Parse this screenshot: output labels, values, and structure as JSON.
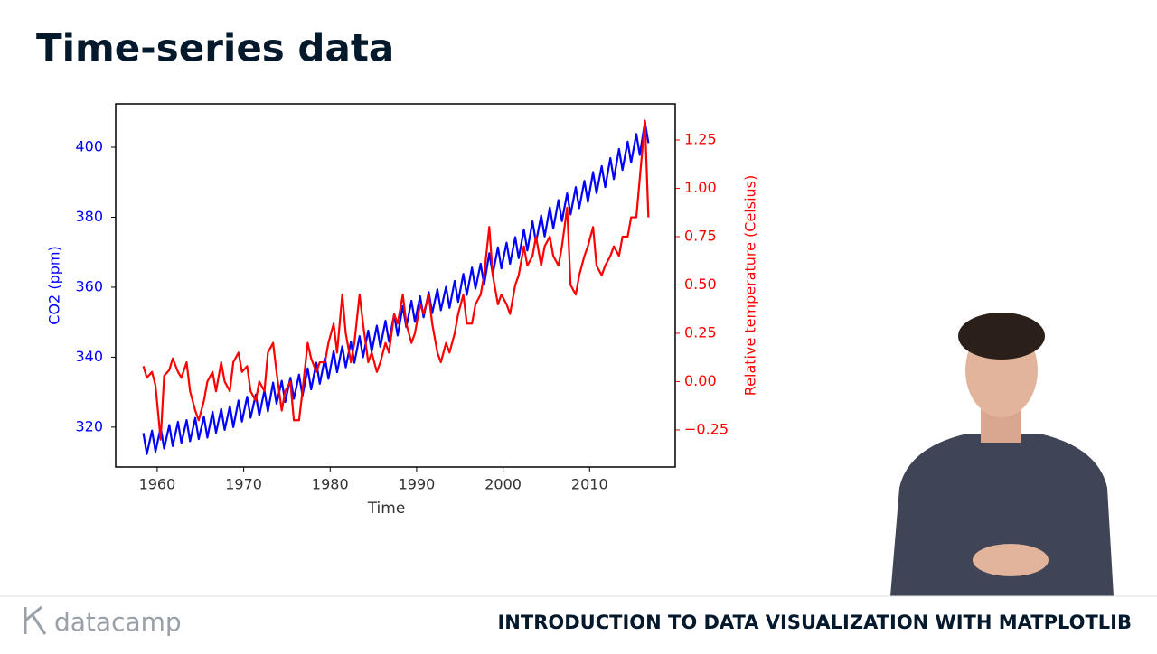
{
  "header": {
    "title": "Time-series data"
  },
  "chart_data": {
    "type": "line",
    "xlabel": "Time",
    "ylabel": "CO2 (ppm)",
    "y2label": "Relative temperature (Celsius)",
    "x": [
      1958.4,
      1958.8,
      1959.4,
      1959.8,
      1960.4,
      1960.8,
      1961.4,
      1961.8,
      1962.4,
      1962.8,
      1963.4,
      1963.8,
      1964.4,
      1964.8,
      1965.4,
      1965.8,
      1966.4,
      1966.8,
      1967.4,
      1967.8,
      1968.4,
      1968.8,
      1969.4,
      1969.8,
      1970.4,
      1970.8,
      1971.4,
      1971.8,
      1972.4,
      1972.8,
      1973.4,
      1973.8,
      1974.4,
      1974.8,
      1975.4,
      1975.8,
      1976.4,
      1976.8,
      1977.4,
      1977.8,
      1978.4,
      1978.8,
      1979.4,
      1979.8,
      1980.4,
      1980.8,
      1981.4,
      1981.8,
      1982.4,
      1982.8,
      1983.4,
      1983.8,
      1984.4,
      1984.8,
      1985.4,
      1985.8,
      1986.4,
      1986.8,
      1987.4,
      1987.8,
      1988.4,
      1988.8,
      1989.4,
      1989.8,
      1990.4,
      1990.8,
      1991.4,
      1991.8,
      1992.4,
      1992.8,
      1993.4,
      1993.8,
      1994.4,
      1994.8,
      1995.4,
      1995.8,
      1996.4,
      1996.8,
      1997.4,
      1997.8,
      1998.4,
      1998.8,
      1999.4,
      1999.8,
      2000.4,
      2000.8,
      2001.4,
      2001.8,
      2002.4,
      2002.8,
      2003.4,
      2003.8,
      2004.4,
      2004.8,
      2005.4,
      2005.8,
      2006.4,
      2006.8,
      2007.4,
      2007.8,
      2008.4,
      2008.8,
      2009.4,
      2009.8,
      2010.4,
      2010.8,
      2011.4,
      2011.8,
      2012.4,
      2012.8,
      2013.4,
      2013.8,
      2014.4,
      2014.8,
      2015.4,
      2015.8,
      2016.4,
      2016.8
    ],
    "series": [
      {
        "color": "#0000ff",
        "axis": "y",
        "values": [
          318.3,
          312.3,
          319.0,
          313.0,
          319.9,
          313.9,
          320.6,
          314.6,
          321.5,
          315.5,
          322.0,
          316.0,
          322.6,
          316.6,
          323.0,
          317.0,
          324.4,
          318.4,
          325.2,
          319.2,
          326.0,
          320.0,
          327.6,
          321.6,
          328.7,
          322.7,
          329.3,
          323.3,
          330.5,
          324.5,
          332.7,
          326.7,
          333.2,
          327.2,
          334.1,
          328.1,
          335.0,
          329.0,
          336.8,
          330.8,
          338.4,
          332.4,
          339.8,
          333.8,
          341.7,
          335.7,
          343.1,
          337.1,
          344.4,
          338.4,
          346.0,
          340.0,
          347.6,
          341.6,
          349.0,
          343.0,
          350.4,
          344.4,
          352.2,
          346.2,
          354.6,
          348.6,
          356.1,
          350.1,
          357.4,
          351.4,
          358.6,
          352.6,
          359.4,
          353.4,
          360.1,
          354.1,
          361.8,
          355.8,
          363.8,
          357.8,
          365.6,
          359.6,
          366.7,
          360.7,
          369.7,
          363.7,
          371.4,
          365.4,
          372.7,
          366.7,
          374.3,
          368.3,
          376.5,
          370.5,
          378.8,
          372.8,
          380.5,
          374.5,
          382.8,
          376.8,
          384.9,
          378.9,
          386.8,
          380.8,
          388.6,
          382.6,
          390.4,
          384.4,
          392.9,
          386.9,
          394.6,
          388.6,
          396.9,
          390.9,
          399.5,
          393.5,
          401.6,
          395.6,
          403.8,
          397.8,
          407.2,
          401.2
        ]
      },
      {
        "color": "#ff0000",
        "axis": "y2",
        "values": [
          0.08,
          0.02,
          0.05,
          -0.02,
          -0.3,
          0.03,
          0.06,
          0.12,
          0.05,
          0.02,
          0.1,
          -0.05,
          -0.15,
          -0.2,
          -0.1,
          0.0,
          0.05,
          -0.05,
          0.1,
          0.0,
          -0.05,
          0.1,
          0.15,
          0.05,
          0.08,
          -0.05,
          -0.1,
          0.0,
          -0.05,
          0.15,
          0.2,
          0.05,
          -0.15,
          -0.05,
          0.0,
          -0.2,
          -0.2,
          -0.05,
          0.2,
          0.12,
          0.05,
          0.1,
          0.1,
          0.2,
          0.3,
          0.15,
          0.45,
          0.25,
          0.1,
          0.2,
          0.45,
          0.3,
          0.1,
          0.15,
          0.05,
          0.1,
          0.2,
          0.15,
          0.35,
          0.3,
          0.45,
          0.3,
          0.2,
          0.25,
          0.4,
          0.35,
          0.45,
          0.3,
          0.15,
          0.1,
          0.2,
          0.15,
          0.25,
          0.35,
          0.45,
          0.3,
          0.3,
          0.4,
          0.45,
          0.55,
          0.8,
          0.55,
          0.4,
          0.45,
          0.4,
          0.35,
          0.5,
          0.55,
          0.7,
          0.6,
          0.65,
          0.75,
          0.6,
          0.7,
          0.75,
          0.65,
          0.6,
          0.7,
          0.9,
          0.5,
          0.45,
          0.55,
          0.65,
          0.7,
          0.8,
          0.6,
          0.55,
          0.6,
          0.65,
          0.7,
          0.65,
          0.75,
          0.75,
          0.85,
          0.85,
          1.05,
          1.35,
          0.85
        ]
      }
    ],
    "xlim": [
      1955.2,
      2019.9
    ],
    "xticks": [
      1960,
      1970,
      1980,
      1990,
      2000,
      2010
    ],
    "ylim": [
      308.6,
      412.4
    ],
    "yticks": [
      320,
      340,
      360,
      380,
      400
    ],
    "y2lim": [
      -0.442,
      1.437
    ],
    "y2ticks": [
      {
        "value": -0.25,
        "label": "−0.25"
      },
      {
        "value": 0,
        "label": "0.00"
      },
      0.25,
      {
        "value": 0.5,
        "label": "0.50"
      },
      0.75,
      {
        "value": 1,
        "label": "1.00"
      },
      1.25
    ]
  },
  "footer": {
    "logo": "datacamp",
    "course": "INTRODUCTION TO DATA VISUALIZATION WITH MATPLOTLIB"
  }
}
